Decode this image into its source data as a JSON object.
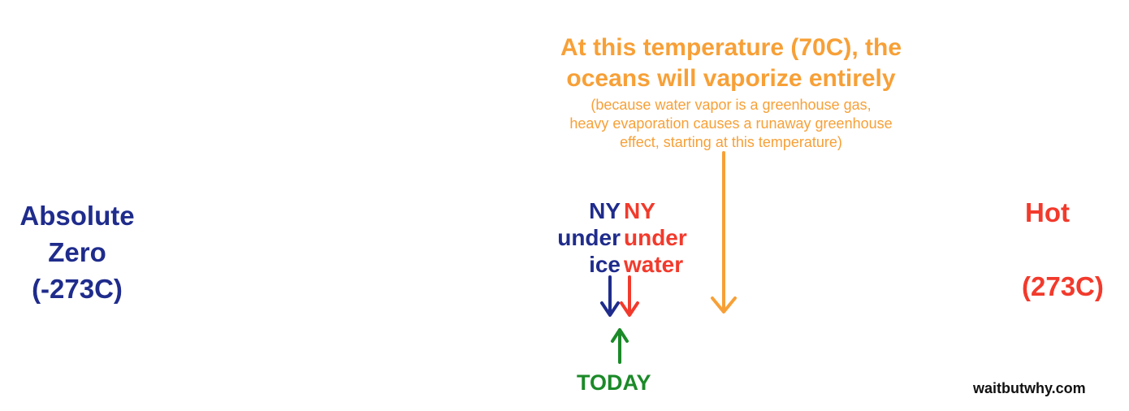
{
  "annotation": {
    "title_line1": "At this temperature (70C), the",
    "title_line2": "oceans will vaporize entirely",
    "sub_line1": "(because water vapor is a greenhouse gas,",
    "sub_line2": "heavy evaporation causes a runaway greenhouse",
    "sub_line3": "effect, starting at this temperature)"
  },
  "scale": {
    "left_line1": "Absolute",
    "left_line2": "Zero",
    "left_line3": "(-273C)",
    "right_line1": "Hot",
    "right_line2": "(273C)"
  },
  "markers": {
    "ice_line1": "NY",
    "ice_line2": "under",
    "ice_line3": "ice",
    "water_line1": "NY",
    "water_line2": "under",
    "water_line3": "water",
    "today": "TODAY"
  },
  "credit": "waitbutwhy.com",
  "colors": {
    "cold": "#7ba8ff",
    "hot": "#ff2a1f",
    "orange": "#f7a037",
    "navy": "#1f2c8c",
    "red": "#f23a2c",
    "green": "#1b8a28"
  }
}
